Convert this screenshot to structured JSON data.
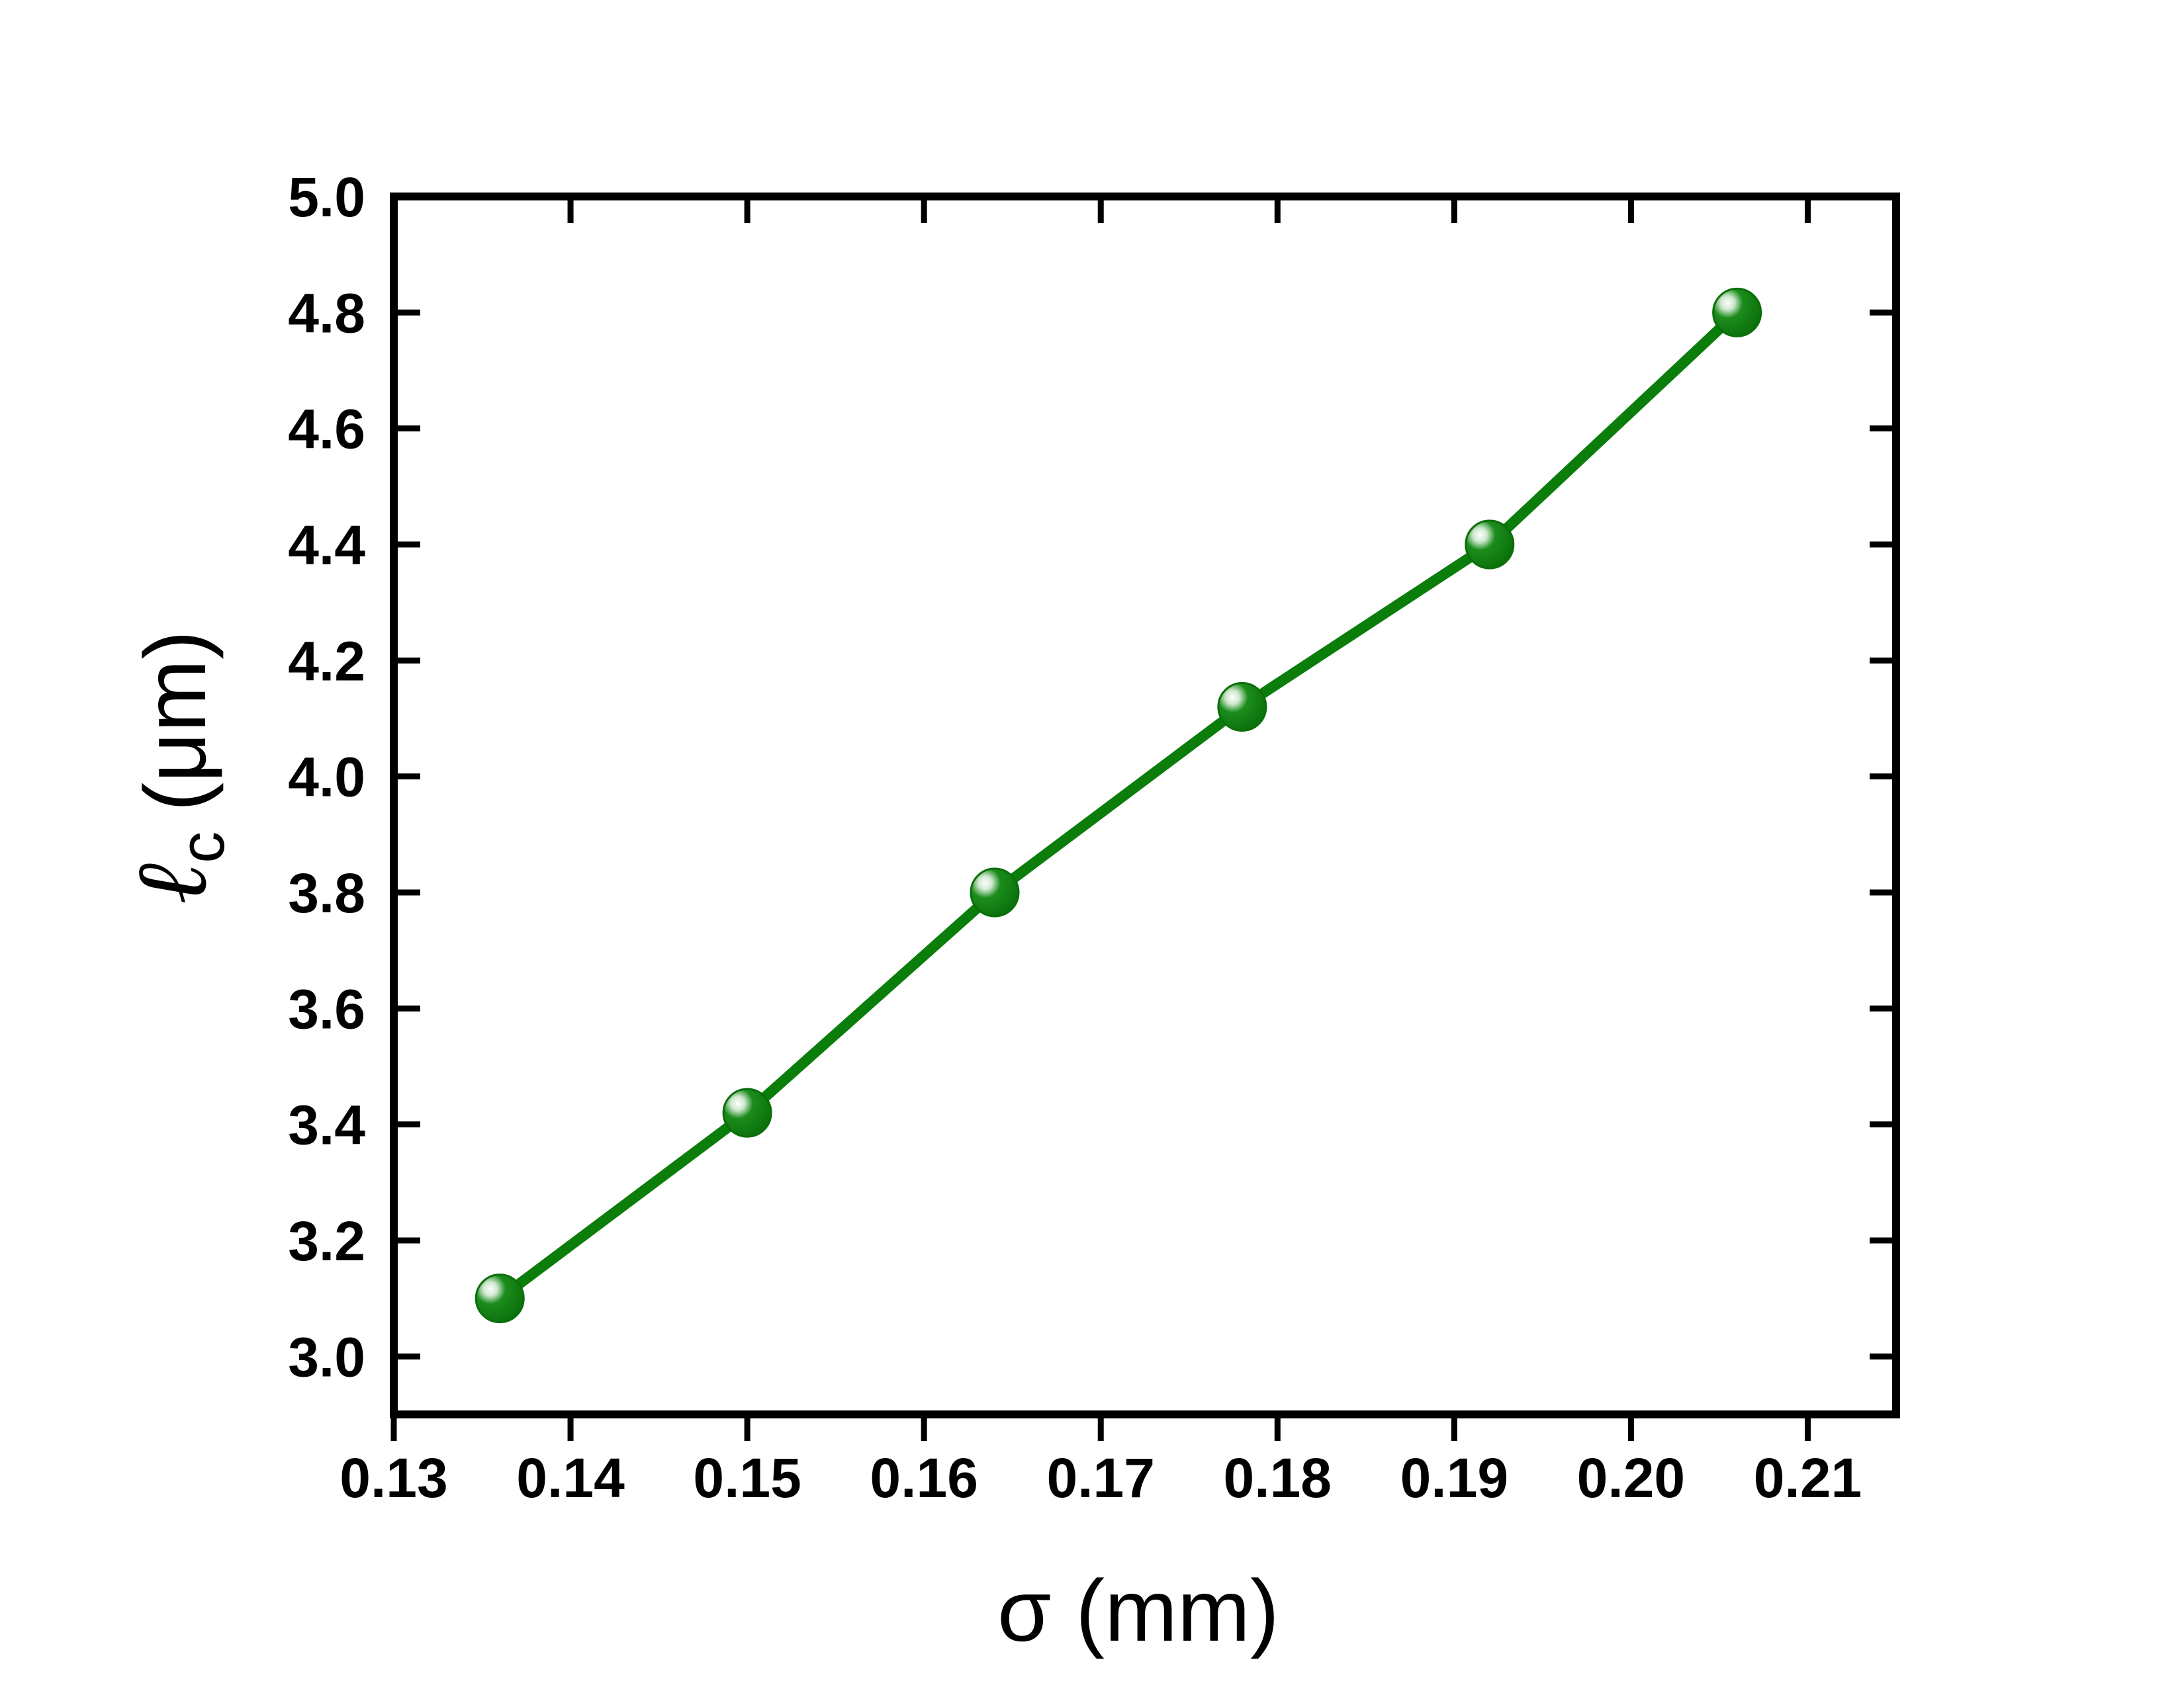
{
  "chart_data": {
    "type": "line",
    "title": "",
    "xlabel": "σ (mm)",
    "ylabel_symbol": "ℓ",
    "ylabel_subscript": "c",
    "ylabel_unit": "(μm)",
    "xlim": [
      0.13,
      0.215
    ],
    "ylim": [
      2.9,
      5.0
    ],
    "x_ticks": [
      0.13,
      0.14,
      0.15,
      0.16,
      0.17,
      0.18,
      0.19,
      0.2,
      0.21
    ],
    "x_tick_labels": [
      "0.13",
      "0.14",
      "0.15",
      "0.16",
      "0.17",
      "0.18",
      "0.19",
      "0.20",
      "0.21"
    ],
    "y_ticks": [
      3.0,
      3.2,
      3.4,
      3.6,
      3.8,
      4.0,
      4.2,
      4.4,
      4.6,
      4.8,
      5.0
    ],
    "y_tick_labels": [
      "3.0",
      "3.2",
      "3.4",
      "3.6",
      "3.8",
      "4.0",
      "4.2",
      "4.4",
      "4.6",
      "4.8",
      "5.0"
    ],
    "grid": false,
    "legend": "none",
    "color": "#0a7d0a",
    "series": [
      {
        "x": [
          0.136,
          0.15,
          0.164,
          0.178,
          0.192,
          0.206
        ],
        "values": [
          3.1,
          3.42,
          3.8,
          4.12,
          4.4,
          4.8
        ]
      }
    ]
  }
}
